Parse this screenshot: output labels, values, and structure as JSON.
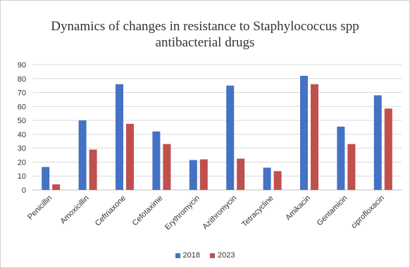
{
  "chart_data": {
    "type": "bar",
    "title_lines": [
      "Dynamics of changes in resistance to Staphylococcus spp",
      "antibacterial drugs"
    ],
    "xlabel": "",
    "ylabel": "",
    "ylim": [
      0,
      90
    ],
    "yticks": [
      0,
      10,
      20,
      30,
      40,
      50,
      60,
      70,
      80,
      90
    ],
    "grid": true,
    "legend_position": "bottom",
    "categories": [
      "Penicillin",
      "Amoxicillin",
      "Ceftriaxone",
      "Cefotaxime",
      "Erythromycin",
      "Azithromycin",
      "Tetracycline",
      "Amikacin",
      "Gentamicin",
      "ciprofloxacin"
    ],
    "series": [
      {
        "name": "2018",
        "color": "#4472c4",
        "values": [
          16.5,
          50,
          76,
          42,
          21.5,
          75,
          16,
          82,
          45.5,
          68
        ]
      },
      {
        "name": "2023",
        "color": "#c0504d",
        "values": [
          4,
          29,
          47.5,
          33,
          22,
          22.5,
          13.5,
          76,
          33,
          58.5
        ]
      }
    ]
  }
}
